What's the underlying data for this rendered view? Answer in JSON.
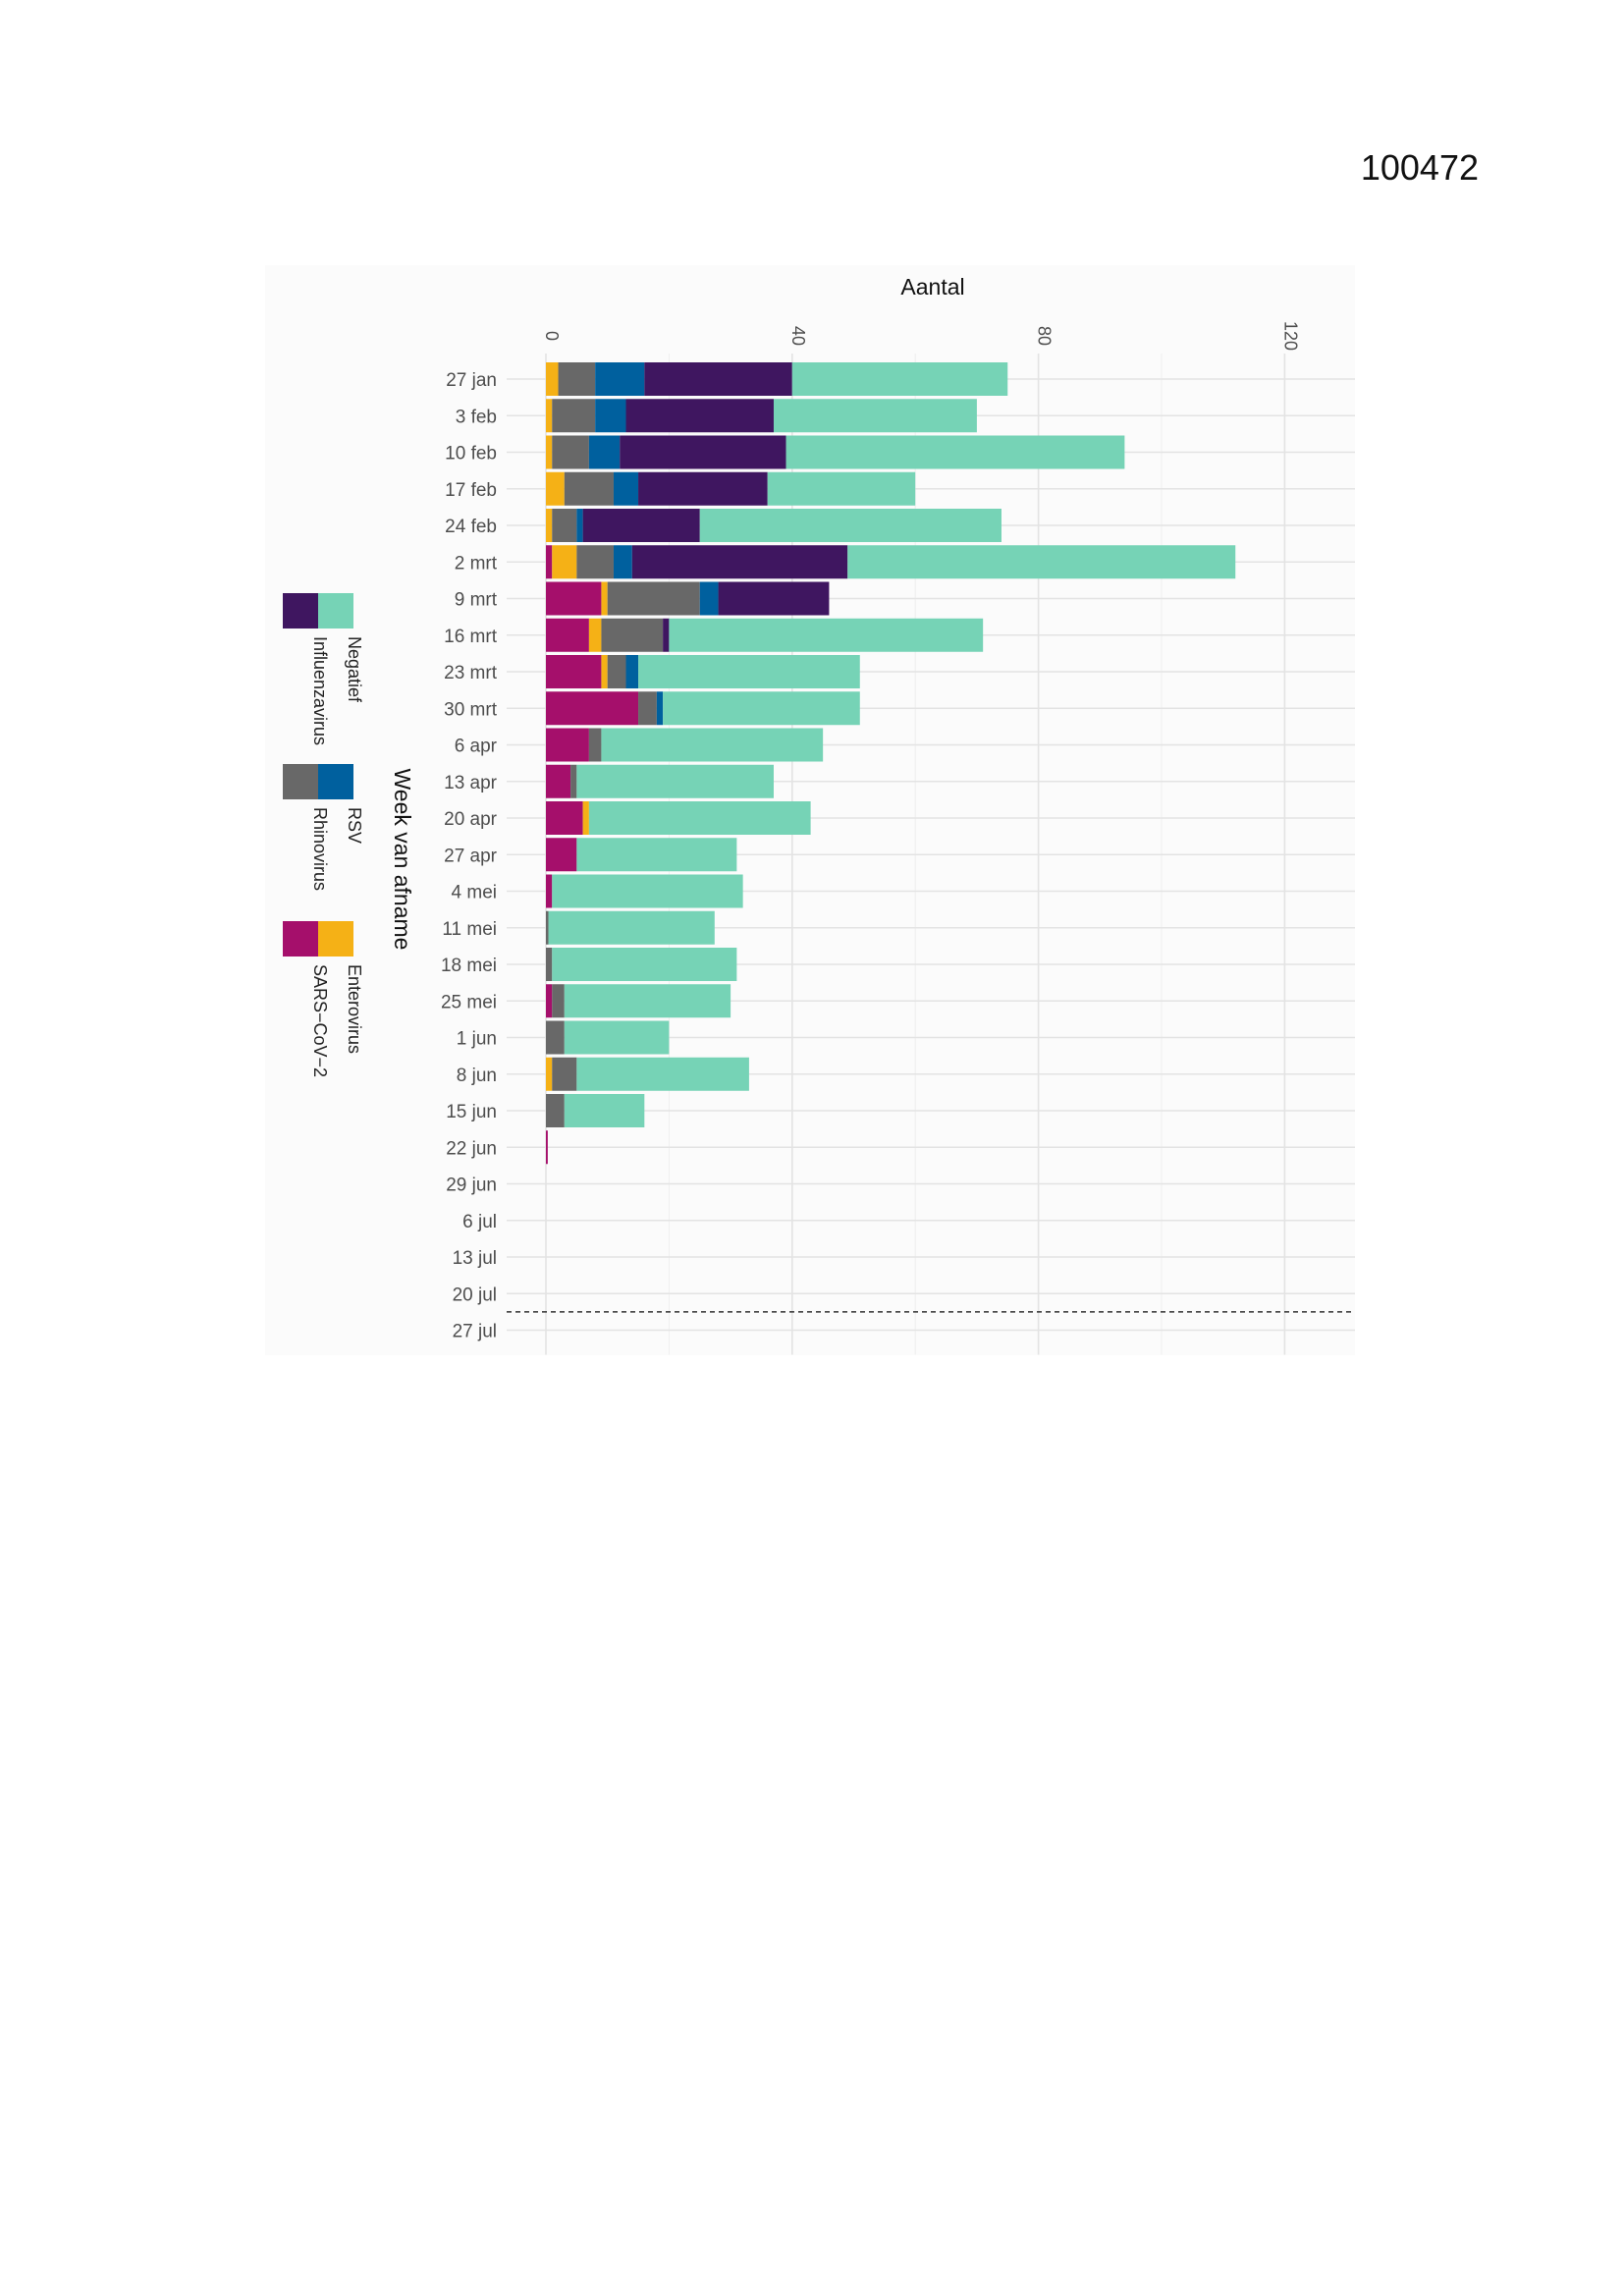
{
  "page_number": "100472",
  "chart_data": {
    "type": "bar",
    "orientation": "horizontal",
    "stacked": true,
    "title": "Aantal",
    "xlabel": "Aantal",
    "ylabel": "Week van afname",
    "xlim": [
      0,
      130
    ],
    "xticks": [
      0,
      40,
      80,
      120
    ],
    "grid": true,
    "legend_position": "left",
    "reference_line_between": [
      "20 jul",
      "27 jul"
    ],
    "categories": [
      "27 jan",
      "3 feb",
      "10 feb",
      "17 feb",
      "24 feb",
      "2 mrt",
      "9 mrt",
      "16 mrt",
      "23 mrt",
      "30 mrt",
      "6 apr",
      "13 apr",
      "20 apr",
      "27 apr",
      "4 mei",
      "11 mei",
      "18 mei",
      "25 mei",
      "1 jun",
      "8 jun",
      "15 jun",
      "22 jun",
      "29 jun",
      "6 jul",
      "13 jul",
      "20 jul",
      "27 jul"
    ],
    "series": [
      {
        "name": "SARS−CoV−2",
        "color": "#a50f6b",
        "values": [
          0,
          0,
          0,
          0,
          0,
          1,
          9,
          7,
          9,
          15,
          7,
          4,
          6,
          5,
          1,
          0,
          0,
          1,
          0,
          0,
          0,
          0.3,
          0,
          0,
          0,
          0,
          0
        ]
      },
      {
        "name": "Enterovirus",
        "color": "#f5b116",
        "values": [
          2,
          1,
          1,
          3,
          1,
          4,
          1,
          2,
          1,
          0,
          0,
          0,
          1,
          0,
          0,
          0,
          0,
          0,
          0,
          1,
          0,
          0,
          0,
          0,
          0,
          0,
          0
        ]
      },
      {
        "name": "Rhinovirus",
        "color": "#686868",
        "values": [
          6,
          7,
          6,
          8,
          4,
          6,
          15,
          10,
          3,
          3,
          2,
          1,
          0,
          0,
          0,
          0.4,
          1,
          2,
          3,
          4,
          3,
          0,
          0,
          0,
          0,
          0,
          0
        ]
      },
      {
        "name": "RSV",
        "color": "#00609e",
        "values": [
          8,
          5,
          5,
          4,
          1,
          3,
          3,
          0,
          2,
          1,
          0,
          0,
          0,
          0,
          0,
          0,
          0,
          0,
          0,
          0,
          0,
          0,
          0,
          0,
          0,
          0,
          0
        ]
      },
      {
        "name": "Influenzavirus",
        "color": "#3f1660",
        "values": [
          24,
          24,
          27,
          21,
          19,
          35,
          18,
          1,
          0,
          0,
          0,
          0,
          0,
          0,
          0,
          0,
          0,
          0,
          0,
          0,
          0,
          0,
          0,
          0,
          0,
          0,
          0
        ]
      },
      {
        "name": "Negatief",
        "color": "#76d3b6",
        "values": [
          35,
          33,
          55,
          24,
          49,
          63,
          0,
          51,
          36,
          32,
          36,
          32,
          36,
          26,
          31,
          27,
          30,
          27,
          17,
          28,
          13,
          0,
          0,
          0,
          0,
          0,
          0
        ]
      }
    ],
    "legend_order": [
      [
        "Negatief",
        "RSV",
        "Enterovirus"
      ],
      [
        "Influenzavirus",
        "Rhinovirus",
        "SARS−CoV−2"
      ]
    ]
  }
}
